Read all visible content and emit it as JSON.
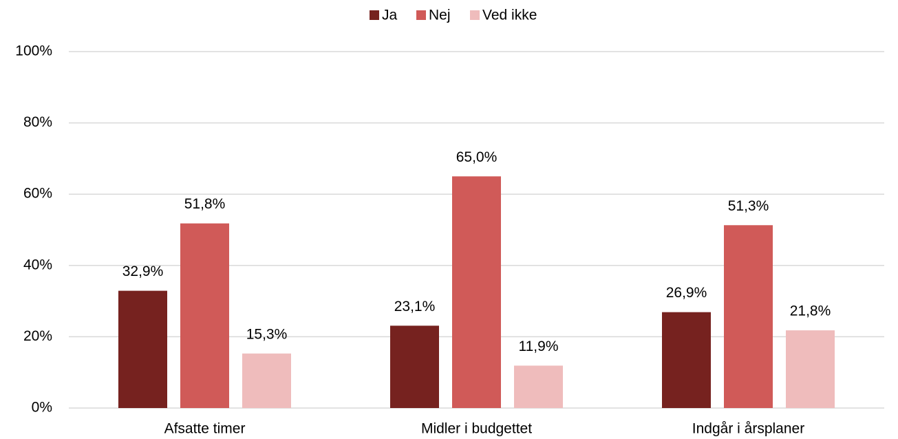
{
  "chart_data": {
    "type": "bar",
    "categories": [
      "Afsatte timer",
      "Midler i budgettet",
      "Indgår i årsplaner"
    ],
    "series": [
      {
        "name": "Ja",
        "color": "#76221f",
        "values": [
          32.9,
          23.1,
          26.9
        ],
        "value_labels": [
          "32,9%",
          "23,1%",
          "26,9%"
        ]
      },
      {
        "name": "Nej",
        "color": "#d05a58",
        "values": [
          51.8,
          65.0,
          51.3
        ],
        "value_labels": [
          "51,8%",
          "65,0%",
          "51,3%"
        ]
      },
      {
        "name": "Ved ikke",
        "color": "#efbcbc",
        "values": [
          15.3,
          11.9,
          21.8
        ],
        "value_labels": [
          "15,3%",
          "11,9%",
          "21,8%"
        ]
      }
    ],
    "ylim": [
      0,
      100
    ],
    "yticks": [
      {
        "value": 0,
        "label": "0%"
      },
      {
        "value": 20,
        "label": "20%"
      },
      {
        "value": 40,
        "label": "40%"
      },
      {
        "value": 60,
        "label": "60%"
      },
      {
        "value": 80,
        "label": "80%"
      },
      {
        "value": 100,
        "label": "100%"
      }
    ],
    "grid": true,
    "legend": "top"
  }
}
